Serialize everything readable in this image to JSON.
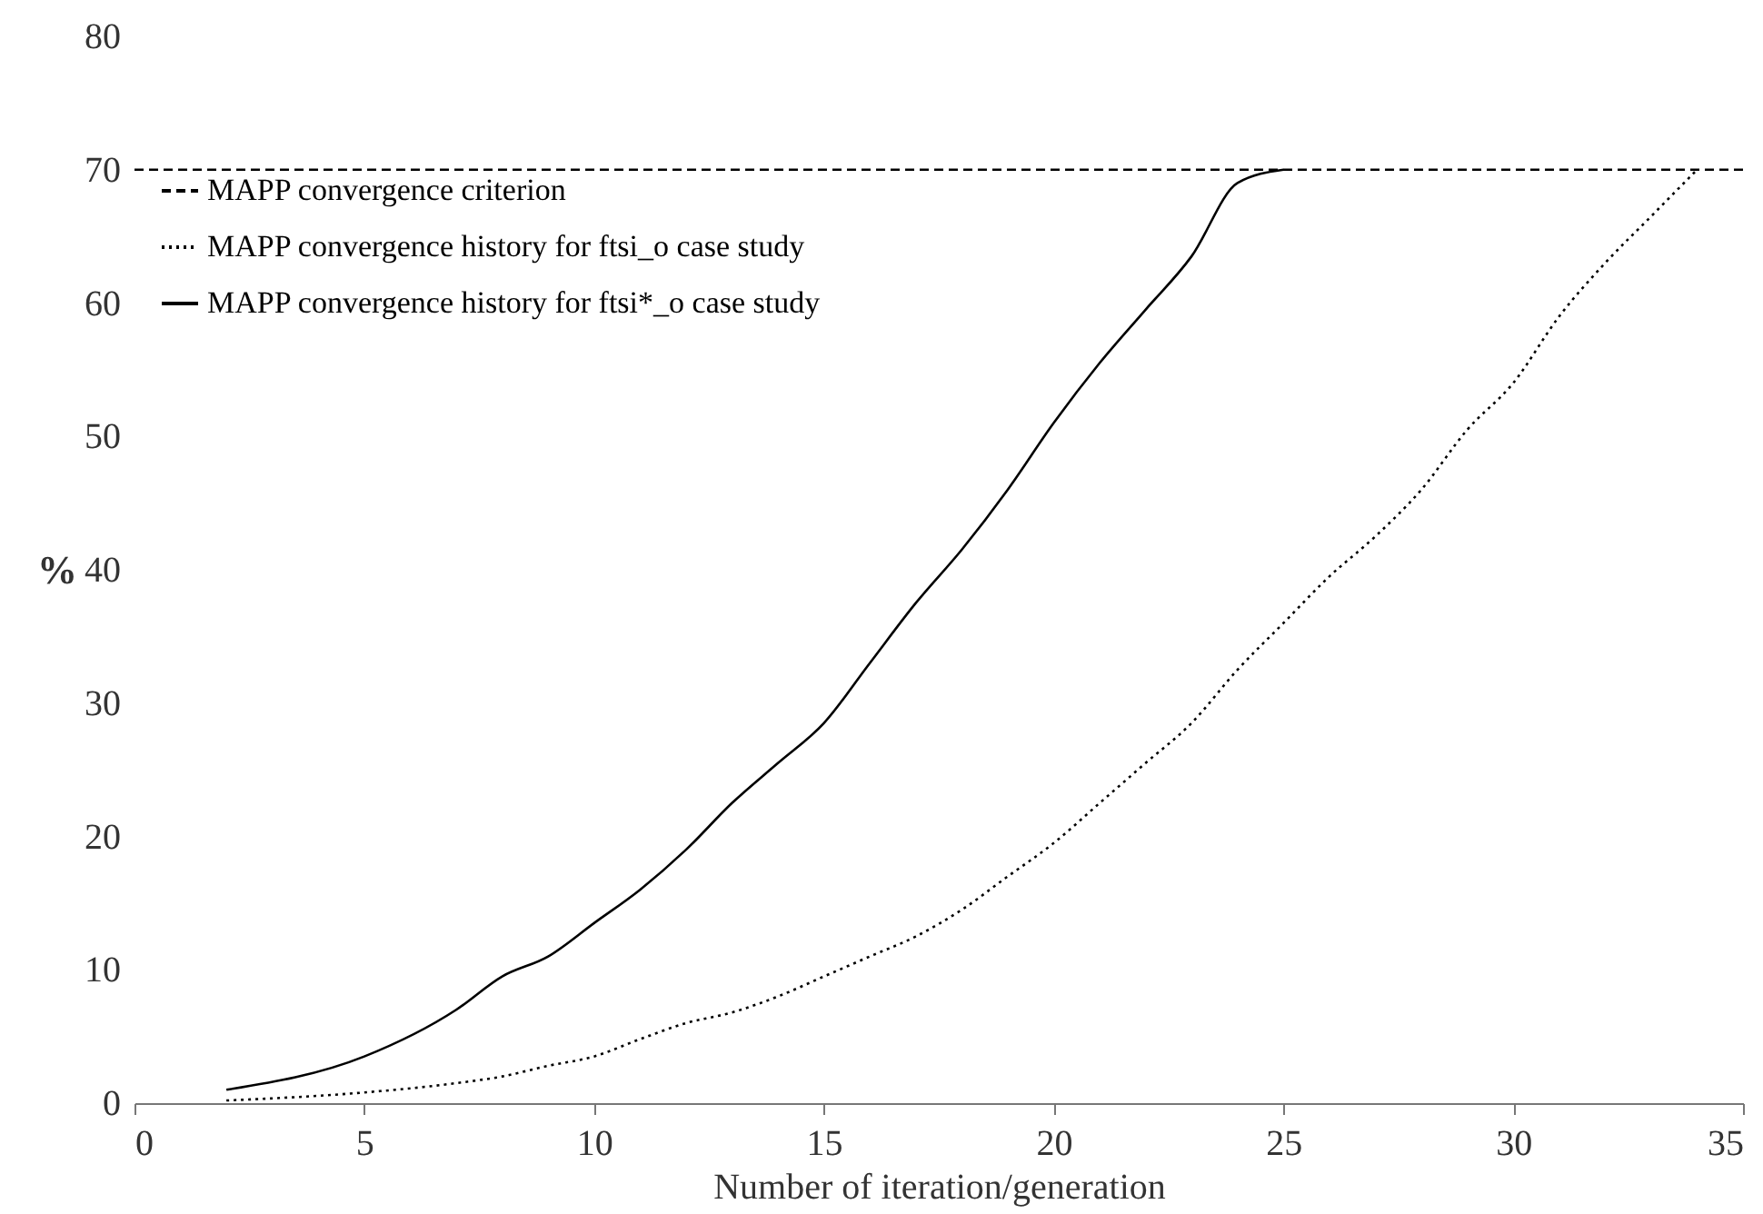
{
  "chart_data": {
    "type": "line",
    "xlabel": "Number of iteration/generation",
    "ylabel": "%",
    "xlim": [
      0,
      35
    ],
    "xticks": [
      0,
      5,
      10,
      15,
      20,
      25,
      30,
      35
    ],
    "ylim": [
      0,
      80
    ],
    "yticks": [
      0,
      10,
      20,
      30,
      40,
      50,
      60,
      70,
      80
    ],
    "grid": false,
    "legend": "top left",
    "marker": "none",
    "series": [
      {
        "name": "MAPP convergence criterion",
        "color": "#000000",
        "line_style": "dashed",
        "x": [
          0,
          35
        ],
        "values": [
          70,
          70
        ]
      },
      {
        "name": "MAPP convergence history for ftsi_o case study",
        "color": "#000000",
        "line_style": "dotted",
        "x": [
          2,
          5,
          7,
          8,
          9,
          10,
          11,
          12,
          13,
          14,
          15,
          16,
          17,
          18,
          19,
          20,
          21,
          22,
          23,
          24,
          25,
          26,
          27,
          28,
          29,
          30,
          31,
          32,
          33,
          34
        ],
        "values": [
          0.2,
          0.8,
          1.5,
          2,
          2.8,
          3.5,
          4.8,
          6,
          6.8,
          8,
          9.5,
          11,
          12.5,
          14.5,
          17,
          19.5,
          22.5,
          25.5,
          28.5,
          32.5,
          36,
          39.5,
          42.5,
          46,
          50.5,
          54,
          59,
          63,
          66.5,
          70
        ]
      },
      {
        "name": "MAPP convergence history for ftsi*_o case study",
        "color": "#000000",
        "line_style": "solid",
        "x": [
          2,
          5,
          7,
          8,
          9,
          10,
          11,
          12,
          13,
          14,
          15,
          16,
          17,
          18,
          19,
          20,
          21,
          22,
          23,
          24,
          25
        ],
        "values": [
          1,
          3.5,
          7,
          9.5,
          11,
          13.5,
          16,
          19,
          22.5,
          25.5,
          28.5,
          33,
          37.5,
          41.5,
          46,
          51,
          55.5,
          59.5,
          63.5,
          69,
          70
        ]
      }
    ]
  }
}
